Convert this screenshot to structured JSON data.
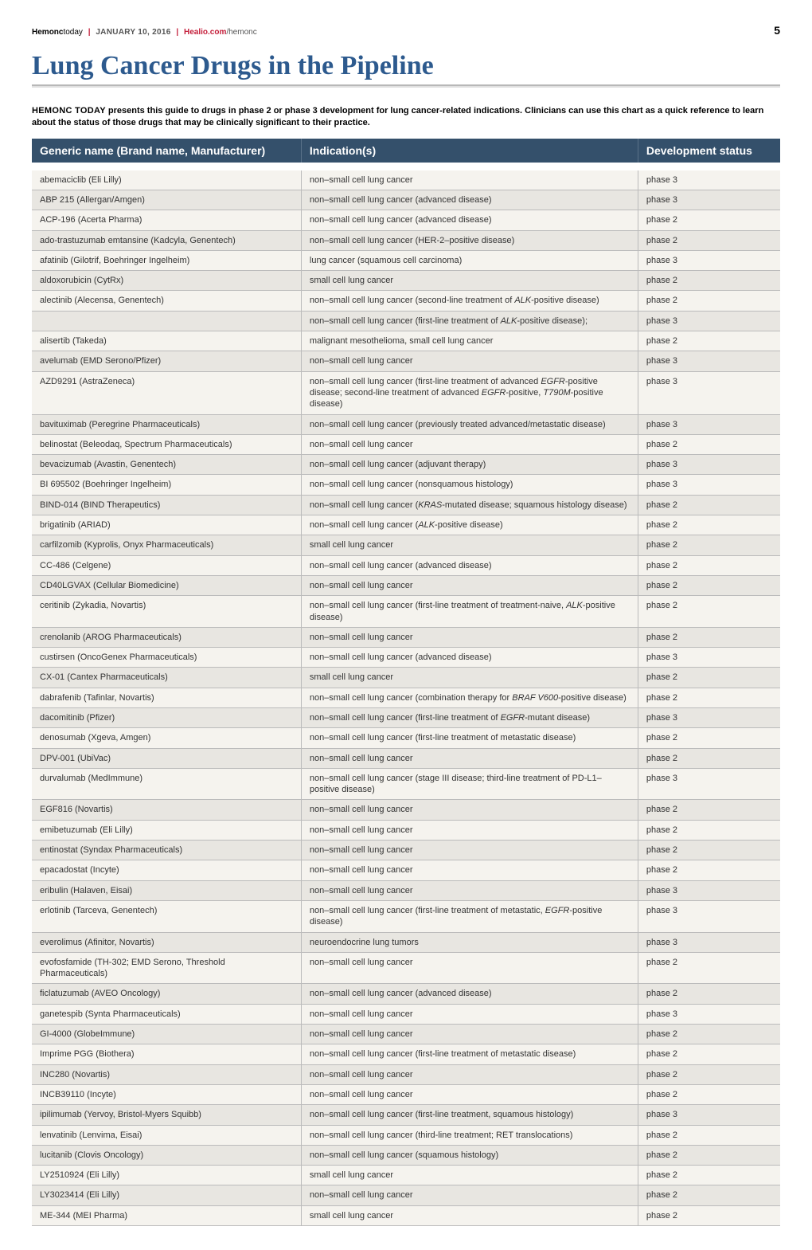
{
  "header": {
    "brand": "Hem",
    "brand_suffix": "onc",
    "brand_today": "today",
    "date": "JANUARY 10, 2016",
    "link_main": "Healio.com",
    "link_tail": "/hemonc",
    "page_number": "5"
  },
  "title": "Lung Cancer Drugs in the Pipeline",
  "intro_caps": "HEMONC TODAY",
  "intro_rest": " presents this guide to drugs in phase 2 or phase 3 development for lung cancer-related indications. Clinicians can use this chart as a quick reference to learn about the status of those drugs that may be clinically significant to their practice.",
  "table": {
    "columns": [
      "Generic name (Brand name, Manufacturer)",
      "Indication(s)",
      "Development status"
    ],
    "column_widths_pct": [
      36,
      45,
      19
    ],
    "header_bg": "#34506b",
    "header_text_color": "#ffffff",
    "row_bg": "#f5f3ee",
    "row_alt_bg": "#e8e6e1",
    "border_color": "#bbbbbb",
    "font_size_pt": 8,
    "rows": [
      {
        "name": "abemaciclib (Eli Lilly)",
        "indication": "non–small cell lung cancer",
        "status": "phase 3"
      },
      {
        "name": "ABP 215 (Allergan/Amgen)",
        "indication": "non–small cell lung cancer (advanced disease)",
        "status": "phase 3"
      },
      {
        "name": "ACP-196 (Acerta Pharma)",
        "indication": "non–small cell lung cancer (advanced disease)",
        "status": "phase 2"
      },
      {
        "name": "ado-trastuzumab emtansine (Kadcyla, Genentech)",
        "indication": "non–small cell lung cancer (HER-2–positive disease)",
        "status": "phase 2"
      },
      {
        "name": "afatinib (Gilotrif, Boehringer Ingelheim)",
        "indication": "lung cancer (squamous cell carcinoma)",
        "status": "phase 3"
      },
      {
        "name": "aldoxorubicin (CytRx)",
        "indication": "small cell lung cancer",
        "status": "phase 2"
      },
      {
        "name": "alectinib (Alecensa, Genentech)",
        "indication": "non–small cell lung cancer (second-line treatment of <em class='gene'>ALK</em>-positive disease)",
        "status": "phase 2"
      },
      {
        "name": "",
        "indication": "non–small cell lung cancer (first-line treatment of <em class='gene'>ALK</em>-positive disease);",
        "status": "phase 3"
      },
      {
        "name": "alisertib (Takeda)",
        "indication": "malignant mesothelioma, small cell lung cancer",
        "status": "phase 2"
      },
      {
        "name": "avelumab (EMD Serono/Pfizer)",
        "indication": "non–small cell lung cancer",
        "status": "phase 3"
      },
      {
        "name": "AZD9291 (AstraZeneca)",
        "indication": "non–small cell lung cancer (first-line treatment of advanced <em class='gene'>EGFR</em>-positive disease; second-line treatment of advanced <em class='gene'>EGFR</em>-positive, <em class='gene'>T790M</em>-positive disease)",
        "status": "phase 3"
      },
      {
        "name": "bavituximab (Peregrine Pharmaceuticals)",
        "indication": "non–small cell lung cancer (previously treated advanced/metastatic disease)",
        "status": "phase 3"
      },
      {
        "name": "belinostat (Beleodaq, Spectrum Pharmaceuticals)",
        "indication": "non–small cell lung cancer",
        "status": "phase 2"
      },
      {
        "name": "bevacizumab (Avastin, Genentech)",
        "indication": "non–small cell lung cancer (adjuvant therapy)",
        "status": "phase 3"
      },
      {
        "name": "BI 695502 (Boehringer Ingelheim)",
        "indication": "non–small cell lung cancer (nonsquamous histology)",
        "status": "phase 3"
      },
      {
        "name": "BIND-014 (BIND Therapeutics)",
        "indication": "non–small cell lung cancer (<em class='gene'>KRAS</em>-mutated disease; squamous histology disease)",
        "status": "phase 2"
      },
      {
        "name": "brigatinib (ARIAD)",
        "indication": "non–small cell lung cancer (<em class='gene'>ALK</em>-positive disease)",
        "status": "phase 2"
      },
      {
        "name": "carfilzomib (Kyprolis, Onyx Pharmaceuticals)",
        "indication": "small cell lung cancer",
        "status": "phase 2"
      },
      {
        "name": "CC-486 (Celgene)",
        "indication": "non–small cell lung cancer (advanced disease)",
        "status": "phase 2"
      },
      {
        "name": "CD40LGVAX (Cellular Biomedicine)",
        "indication": "non–small cell lung cancer",
        "status": "phase 2"
      },
      {
        "name": "ceritinib (Zykadia, Novartis)",
        "indication": "non–small cell lung cancer (first-line treatment of treatment-naive, <em class='gene'>ALK</em>-positive disease)",
        "status": "phase 2"
      },
      {
        "name": "crenolanib (AROG Pharmaceuticals)",
        "indication": "non–small cell lung cancer",
        "status": "phase 2"
      },
      {
        "name": "custirsen (OncoGenex Pharmaceuticals)",
        "indication": "non–small cell lung cancer (advanced disease)",
        "status": "phase 3"
      },
      {
        "name": "CX-01 (Cantex Pharmaceuticals)",
        "indication": "small cell lung cancer",
        "status": "phase 2"
      },
      {
        "name": "dabrafenib (Tafinlar, Novartis)",
        "indication": "non–small cell lung cancer (combination therapy for <em class='gene'>BRAF V600</em>-positive disease)",
        "status": "phase 2"
      },
      {
        "name": "dacomitinib (Pfizer)",
        "indication": "non–small cell lung cancer (first-line treatment of <em class='gene'>EGFR</em>-mutant disease)",
        "status": "phase 3"
      },
      {
        "name": "denosumab (Xgeva, Amgen)",
        "indication": "non–small cell lung cancer (first-line treatment of metastatic disease)",
        "status": "phase 2"
      },
      {
        "name": "DPV-001 (UbiVac)",
        "indication": "non–small cell lung cancer",
        "status": "phase 2"
      },
      {
        "name": "durvalumab (MedImmune)",
        "indication": "non–small cell lung cancer (stage III disease; third-line treatment of PD-L1–positive disease)",
        "status": "phase 3"
      },
      {
        "name": "EGF816 (Novartis)",
        "indication": "non–small cell lung cancer",
        "status": "phase 2"
      },
      {
        "name": "emibetuzumab (Eli Lilly)",
        "indication": "non–small cell lung cancer",
        "status": "phase 2"
      },
      {
        "name": "entinostat (Syndax Pharmaceuticals)",
        "indication": "non–small cell lung cancer",
        "status": "phase 2"
      },
      {
        "name": "epacadostat (Incyte)",
        "indication": "non–small cell lung cancer",
        "status": "phase 2"
      },
      {
        "name": "eribulin (Halaven, Eisai)",
        "indication": "non–small cell lung cancer",
        "status": "phase 3"
      },
      {
        "name": "erlotinib (Tarceva, Genentech)",
        "indication": "non–small cell lung cancer (first-line treatment of metastatic, <em class='gene'>EGFR</em>-positive disease)",
        "status": "phase 3"
      },
      {
        "name": "everolimus (Afinitor, Novartis)",
        "indication": "neuroendocrine lung tumors",
        "status": "phase 3"
      },
      {
        "name": "evofosfamide (TH-302; EMD Serono, Threshold Pharmaceuticals)",
        "indication": "non–small cell lung cancer",
        "status": "phase 2"
      },
      {
        "name": "ficlatuzumab (AVEO Oncology)",
        "indication": "non–small cell lung cancer (advanced disease)",
        "status": "phase 2"
      },
      {
        "name": "ganetespib (Synta Pharmaceuticals)",
        "indication": "non–small cell lung cancer",
        "status": "phase 3"
      },
      {
        "name": "GI-4000 (GlobeImmune)",
        "indication": "non–small cell lung cancer",
        "status": "phase 2"
      },
      {
        "name": "Imprime PGG (Biothera)",
        "indication": "non–small cell lung cancer (first-line treatment of metastatic disease)",
        "status": "phase 2"
      },
      {
        "name": "INC280 (Novartis)",
        "indication": "non–small cell lung cancer",
        "status": "phase 2"
      },
      {
        "name": "INCB39110 (Incyte)",
        "indication": "non–small cell lung cancer",
        "status": "phase 2"
      },
      {
        "name": "ipilimumab (Yervoy, Bristol-Myers Squibb)",
        "indication": "non–small cell lung cancer (first-line treatment, squamous histology)",
        "status": "phase 3"
      },
      {
        "name": "lenvatinib (Lenvima, Eisai)",
        "indication": "non–small cell lung cancer (third-line treatment; RET translocations)",
        "status": "phase 2"
      },
      {
        "name": "lucitanib (Clovis Oncology)",
        "indication": "non–small cell lung cancer (squamous histology)",
        "status": "phase 2"
      },
      {
        "name": "LY2510924 (Eli Lilly)",
        "indication": "small cell lung cancer",
        "status": "phase 2"
      },
      {
        "name": "LY3023414 (Eli Lilly)",
        "indication": "non–small cell lung cancer",
        "status": "phase 2"
      },
      {
        "name": "ME-344 (MEI Pharma)",
        "indication": "small cell lung cancer",
        "status": "phase 2"
      }
    ]
  },
  "colors": {
    "title_color": "#2d5a8e",
    "accent_red": "#c41e3a"
  }
}
